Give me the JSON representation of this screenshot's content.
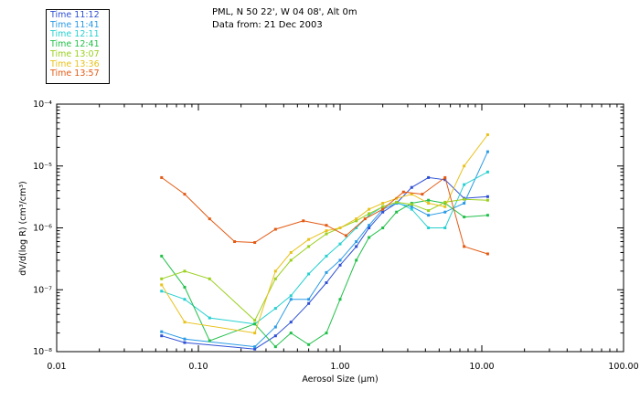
{
  "header": {
    "line1": "PML, N 50 22', W 04 08', Alt 0m",
    "line2": "Data from: 21 Dec 2003"
  },
  "chart_data": {
    "type": "line",
    "x_scale": "log",
    "y_scale": "log",
    "xlabel": "Aerosol Size (μm)",
    "ylabel": "dV/d(log R)  (cm³/cm³)",
    "xlim": [
      0.01,
      100
    ],
    "ylim": [
      1e-08,
      0.0001
    ],
    "x_tick_labels": [
      "0.01",
      "0.10",
      "1.00",
      "10.00",
      "100.00"
    ],
    "y_tick_labels": [
      "10⁻⁸",
      "10⁻⁷",
      "10⁻⁶",
      "10⁻⁵",
      "10⁻⁴"
    ],
    "grid": false,
    "legend_position": "top-left",
    "series": [
      {
        "name": "Time 11:12",
        "color": "#2e4fd4",
        "x": [
          0.055,
          0.08,
          0.25,
          0.35,
          0.45,
          0.6,
          0.8,
          1.0,
          1.3,
          1.6,
          2.0,
          2.5,
          3.2,
          4.2,
          5.5,
          7.5,
          11.0
        ],
        "y": [
          1.8e-08,
          1.4e-08,
          1.1e-08,
          1.8e-08,
          3e-08,
          6e-08,
          1.3e-07,
          2.5e-07,
          5e-07,
          1e-06,
          1.8e-06,
          2.5e-06,
          4.5e-06,
          6.5e-06,
          6e-06,
          3e-06,
          3.2e-06
        ]
      },
      {
        "name": "Time 11:41",
        "color": "#2a9be6",
        "x": [
          0.055,
          0.08,
          0.25,
          0.35,
          0.45,
          0.6,
          0.8,
          1.0,
          1.3,
          1.6,
          2.0,
          2.5,
          3.2,
          4.2,
          5.5,
          7.5,
          11.0
        ],
        "y": [
          2.1e-08,
          1.6e-08,
          1.2e-08,
          2.5e-08,
          7e-08,
          7e-08,
          1.9e-07,
          3e-07,
          6e-07,
          1.1e-06,
          2e-06,
          2.5e-06,
          2.2e-06,
          1.6e-06,
          1.8e-06,
          2.5e-06,
          1.7e-05
        ]
      },
      {
        "name": "Time 12:11",
        "color": "#26d0d0",
        "x": [
          0.055,
          0.08,
          0.12,
          0.25,
          0.35,
          0.45,
          0.6,
          0.8,
          1.0,
          1.3,
          1.6,
          2.0,
          2.5,
          3.2,
          4.2,
          5.5,
          7.5,
          11.0
        ],
        "y": [
          9.5e-08,
          7e-08,
          3.5e-08,
          2.8e-08,
          5e-08,
          8e-08,
          1.8e-07,
          3.5e-07,
          5.5e-07,
          1e-06,
          1.6e-06,
          2.2e-06,
          2.6e-06,
          2e-06,
          1e-06,
          1e-06,
          5e-06,
          8e-06
        ]
      },
      {
        "name": "Time 12:41",
        "color": "#22c04a",
        "x": [
          0.055,
          0.08,
          0.12,
          0.25,
          0.35,
          0.45,
          0.6,
          0.8,
          1.0,
          1.3,
          1.6,
          2.0,
          2.5,
          3.2,
          4.2,
          5.5,
          7.5,
          11.0
        ],
        "y": [
          3.5e-07,
          1.1e-07,
          1.5e-08,
          2.8e-08,
          1.2e-08,
          2e-08,
          1.3e-08,
          2e-08,
          7e-08,
          3e-07,
          7e-07,
          1e-06,
          1.8e-06,
          2.5e-06,
          2.8e-06,
          2.5e-06,
          1.5e-06,
          1.6e-06
        ]
      },
      {
        "name": "Time 13:07",
        "color": "#9ad01e",
        "x": [
          0.055,
          0.08,
          0.12,
          0.25,
          0.35,
          0.45,
          0.6,
          0.8,
          1.0,
          1.3,
          1.6,
          2.0,
          2.5,
          3.2,
          4.2,
          5.5,
          7.5,
          11.0
        ],
        "y": [
          1.5e-07,
          2e-07,
          1.5e-07,
          3.2e-08,
          1.5e-07,
          3e-07,
          5e-07,
          8e-07,
          1e-06,
          1.3e-06,
          1.7e-06,
          2.2e-06,
          2.6e-06,
          2.4e-06,
          1.9e-06,
          2.6e-06,
          2.9e-06,
          2.8e-06
        ]
      },
      {
        "name": "Time 13:36",
        "color": "#e8c21c",
        "x": [
          0.055,
          0.08,
          0.25,
          0.35,
          0.45,
          0.6,
          0.8,
          1.0,
          1.3,
          1.6,
          2.0,
          2.5,
          3.2,
          4.2,
          5.5,
          7.5,
          11.0
        ],
        "y": [
          1.2e-07,
          3e-08,
          2e-08,
          2e-07,
          4e-07,
          6.5e-07,
          9e-07,
          1e-06,
          1.4e-06,
          2e-06,
          2.5e-06,
          3e-06,
          3.5e-06,
          2.5e-06,
          2.2e-06,
          1e-05,
          3.2e-05
        ]
      },
      {
        "name": "Time 13:57",
        "color": "#e35a14",
        "x": [
          0.055,
          0.08,
          0.12,
          0.18,
          0.25,
          0.35,
          0.55,
          0.8,
          1.1,
          1.5,
          2.0,
          2.8,
          3.8,
          5.5,
          7.5,
          11.0
        ],
        "y": [
          6.5e-06,
          3.5e-06,
          1.4e-06,
          6e-07,
          5.8e-07,
          9.5e-07,
          1.3e-06,
          1.1e-06,
          7.5e-07,
          1.4e-06,
          2e-06,
          3.8e-06,
          3.5e-06,
          6.5e-06,
          5e-07,
          3.8e-07
        ]
      }
    ]
  }
}
